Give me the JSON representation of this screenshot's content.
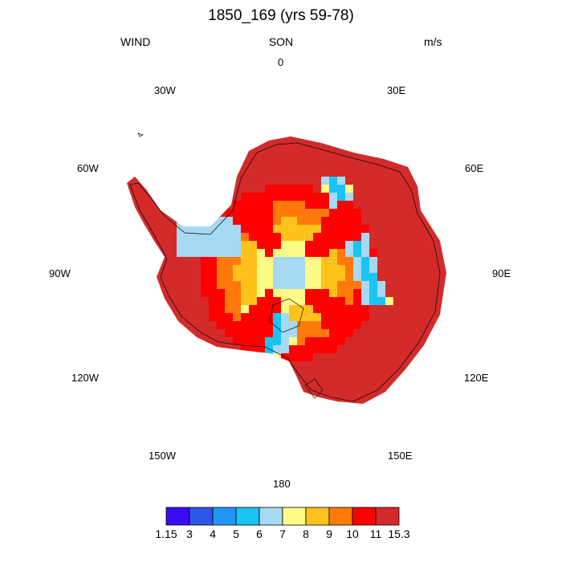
{
  "title": "1850_169 (yrs 59-78)",
  "left_label": "WIND",
  "center_label": "SON",
  "right_label": "m/s",
  "longitude_labels": {
    "n": "0",
    "n30e": "30E",
    "n30w": "30W",
    "e60": "60E",
    "w60": "60W",
    "e90": "90E",
    "w90": "90W",
    "e120": "120E",
    "w120": "120W",
    "e150": "150E",
    "w150": "150W",
    "s": "180"
  },
  "colorbar": {
    "colors": [
      "#3a0ef5",
      "#2f55e8",
      "#2195f5",
      "#19c3f2",
      "#a6d9f2",
      "#fffa86",
      "#ffc21a",
      "#ff7a0a",
      "#ff0000",
      "#d42a2a"
    ],
    "labels": [
      "1.15",
      "3",
      "4",
      "5",
      "6",
      "7",
      "8",
      "9",
      "10",
      "11",
      "15.3"
    ]
  },
  "palette": {
    "very_low": "#a6d9f2",
    "low": "#19c3f2",
    "lowest": "#2f55e8",
    "mid_low": "#fffa86",
    "mid": "#ffc21a",
    "mid_high": "#ff7a0a",
    "high": "#ff0000",
    "max": "#d42a2a"
  }
}
